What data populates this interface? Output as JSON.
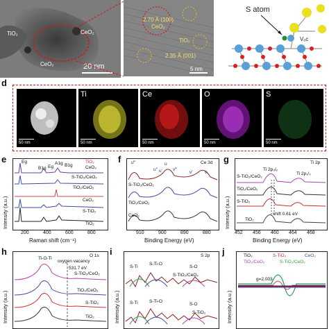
{
  "top": {
    "tem_labels": {
      "tio2": "TiO₂",
      "ceo2_a": "CeO₂",
      "ceo2_b": "CeO₂",
      "scale": "20 nm"
    },
    "hrtem_labels": {
      "ceo2_spacing": "2.70 Å (100)",
      "ceo2": "CeO₂",
      "tio2": "TiO₂",
      "tio2_spacing": "2.35 Å (001)",
      "scale": "5 nm"
    },
    "model_labels": {
      "s_atom": "S atom",
      "vo": "Vₒc"
    }
  },
  "panel_d": {
    "letter": "d",
    "maps": [
      {
        "title": "",
        "scale": "50 nm",
        "color": "#cccccc"
      },
      {
        "title": "Ti",
        "scale": "50 nm",
        "color": "#d6d22a"
      },
      {
        "title": "Ce",
        "scale": "50 nm",
        "color": "#d21f1f"
      },
      {
        "title": "O",
        "scale": "50 nm",
        "color": "#b02ad0"
      },
      {
        "title": "S",
        "scale": "50 nm",
        "color": "#2f8f3a"
      }
    ]
  },
  "panel_e": {
    "letter": "e",
    "ylabel": "Intensity (a.u.)",
    "xlabel": "Raman shift (cm⁻¹)",
    "xticks": [
      "200",
      "400",
      "600",
      "800"
    ],
    "legend": [
      "TiO₂",
      "CeO₂"
    ],
    "peaks": [
      "Eg",
      "B1g",
      "Eg",
      "A1g",
      "B1g"
    ],
    "curves": [
      "S-TiO₂/CeO₂",
      "TiO₂/CeO₂",
      "CeO₂",
      "S-TiO₂",
      "TiO₂"
    ]
  },
  "panel_f": {
    "letter": "f",
    "corner": "Ce 3d",
    "xlabel": "Binding Energy (eV)",
    "xticks": [
      "910",
      "900",
      "890",
      "880"
    ],
    "peaks": [
      "u‴",
      "u″",
      "u",
      "v‴",
      "v′",
      "v",
      "u′"
    ],
    "curves": [
      "S-TiO₂/CeO₂",
      "TiO₂/CeO₂",
      "CeO₂"
    ]
  },
  "panel_g": {
    "letter": "g",
    "corner": "Ti 2p",
    "ylabel": "Intensity (a.u.)",
    "xlabel": "Binding Energy (eV)",
    "xticks": [
      "452",
      "456",
      "460",
      "464",
      "468"
    ],
    "peaks": [
      "Ti 2p₃/₂",
      "Ti 2p₁/₂"
    ],
    "shift": "shift 0.61 eV",
    "curves": [
      "S-TiO₂/CeO₂",
      "TiO₂/CeO₂",
      "S-TiO₂",
      "TiO₂"
    ]
  },
  "panel_h": {
    "letter": "h",
    "corner": "O 1s",
    "ylabel": "Intensity (a.u.)",
    "tioti": "Ti-O-Ti",
    "vacancy": "oxygen vacancy",
    "energy": "531.7 eV",
    "curves": [
      "S-TiO₂/CeO₂",
      "TiO₂/CeO₂",
      "S-TiO₂",
      "TiO₂"
    ]
  },
  "panel_i": {
    "letter": "i",
    "corner": "S 2p",
    "ylabel": "Intensity (a.u.)",
    "top_labels": [
      "S-Ti",
      "S-Ti-O",
      "S-O",
      "S-TiO₂/CeO₂"
    ],
    "bottom_labels": [
      "S-Ti",
      "S-Ti-O",
      "S-O",
      "S-TiO₂"
    ]
  },
  "panel_j": {
    "letter": "j",
    "ylabel": "Intensity (a.u.)",
    "legend": [
      "TiO₂",
      "S-TiO₂",
      "CeO₂",
      "TiO₂/CeO₂",
      "S-TiO₂/CeO₂"
    ],
    "legend_colors": [
      "#111111",
      "#d03030",
      "#3050c0",
      "#b040b0",
      "#2f9a4a"
    ],
    "g_value": "g=2.003"
  }
}
